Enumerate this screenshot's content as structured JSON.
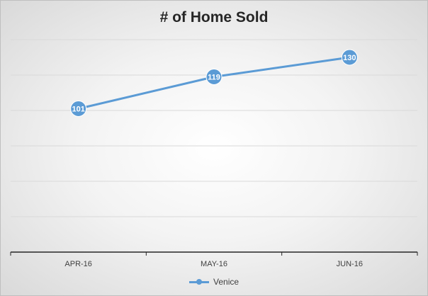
{
  "chart_data": {
    "type": "line",
    "title": "# of Home Sold",
    "xlabel": "",
    "ylabel": "",
    "categories": [
      "APR-16",
      "MAY-16",
      "JUN-16"
    ],
    "series": [
      {
        "name": "Venice",
        "values": [
          101,
          119,
          130
        ]
      }
    ],
    "ylim": [
      20,
      140
    ],
    "y_tick_labels_shown": false,
    "grid": true,
    "legend": "bottom",
    "data_labels": true,
    "colors": {
      "series": "#5b9bd5",
      "grid": "#d9d9d9",
      "axis": "#262626"
    }
  }
}
